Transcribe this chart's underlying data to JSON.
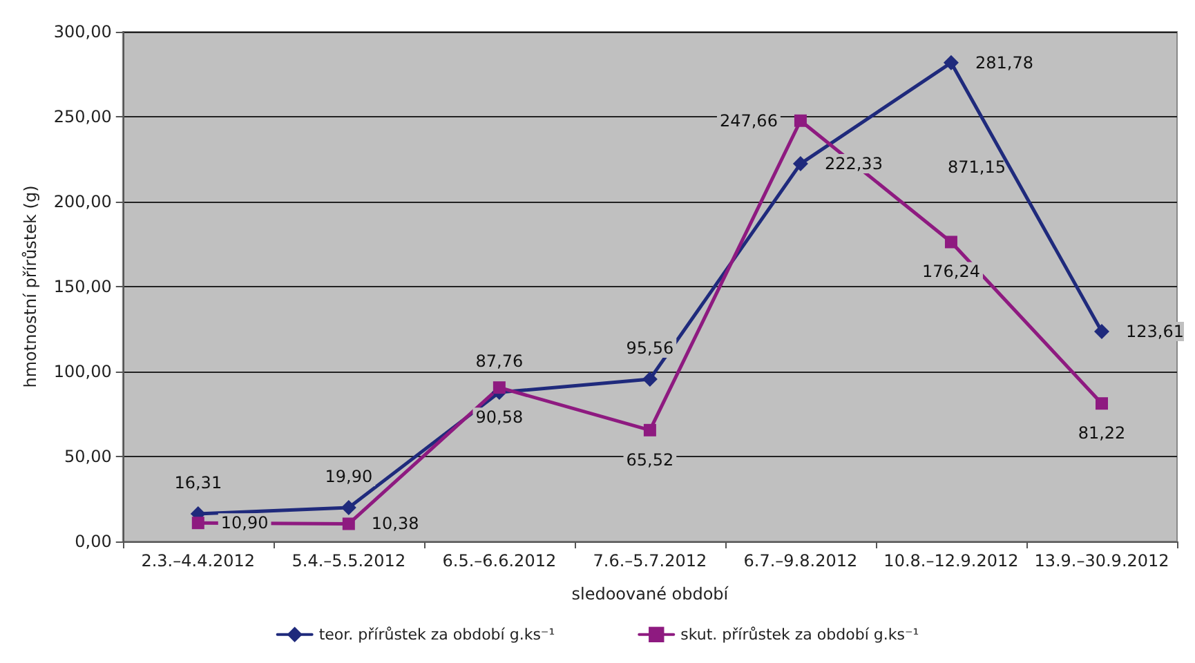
{
  "chart_data": {
    "type": "line",
    "xlabel": "sledoované období",
    "ylabel": "hmotnostní přírůstek (g)",
    "categories": [
      "2.3.–4.4.2012",
      "5.4.–5.5.2012",
      "6.5.–6.6.2012",
      "7.6.–5.7.2012",
      "6.7.–9.8.2012",
      "10.8.–12.9.2012",
      "13.9.–30.9.2012"
    ],
    "series": [
      {
        "name": "teor. přírůstek za období g.ks⁻¹",
        "color": "#1f2a7c",
        "marker": "diamond",
        "values": [
          16.31,
          19.9,
          87.76,
          95.56,
          222.33,
          281.78,
          123.61
        ],
        "value_labels": [
          "16,31",
          "19,90",
          "87,76",
          "95,56",
          "222,33",
          "281,78",
          "123,61"
        ]
      },
      {
        "name": "skut. přírůstek za období g.ks⁻¹",
        "color": "#8e1a80",
        "marker": "square",
        "values": [
          10.9,
          10.38,
          90.58,
          65.52,
          247.66,
          176.24,
          81.22
        ],
        "value_labels": [
          "10,90",
          "10,38",
          "90,58",
          "65,52",
          "247,66",
          "176,24",
          "81,22"
        ]
      }
    ],
    "ylim": [
      0,
      300
    ],
    "yticks": [
      {
        "value": 0,
        "label": "0,00"
      },
      {
        "value": 50,
        "label": "50,00"
      },
      {
        "value": 100,
        "label": "100,00"
      },
      {
        "value": 150,
        "label": "150,00"
      },
      {
        "value": 200,
        "label": "200,00"
      },
      {
        "value": 250,
        "label": "250,00"
      },
      {
        "value": 300,
        "label": "300,00"
      }
    ],
    "grid": "y",
    "legend": "bottom",
    "line_style": "solid",
    "annotations": [
      "871,15"
    ]
  }
}
